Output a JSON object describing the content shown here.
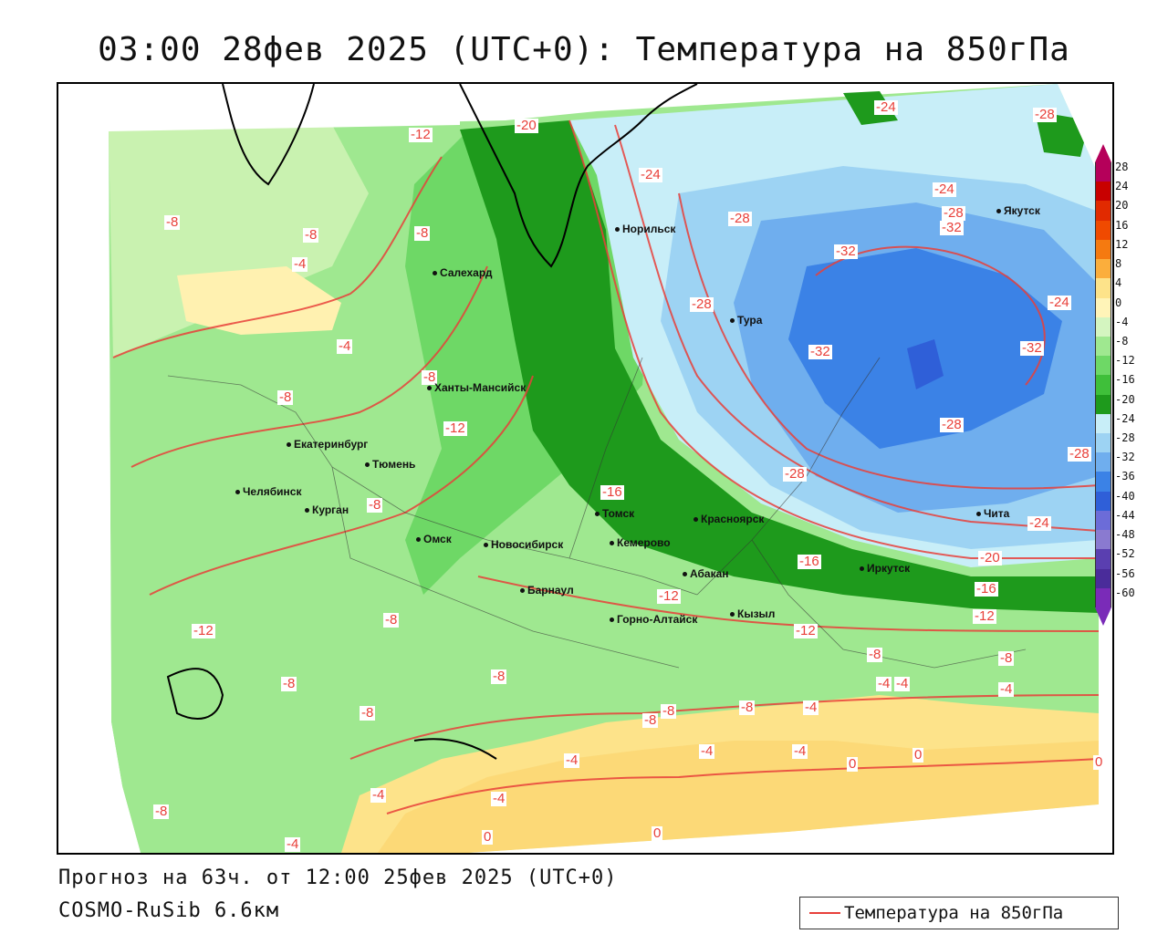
{
  "title": "03:00 28фев 2025 (UTC+0): Температура на 850гПа",
  "footer": {
    "forecast": "Прогноз на 63ч. от 12:00 25фев 2025 (UTC+0)",
    "model": "COSMO-RuSib 6.6км"
  },
  "legend": {
    "label": "Температура на 850гПа",
    "line_color": "#e8403a"
  },
  "colorbar": {
    "levels": [
      {
        "label": "28",
        "color": "#b5005a"
      },
      {
        "label": "24",
        "color": "#c80000"
      },
      {
        "label": "20",
        "color": "#e12a00"
      },
      {
        "label": "16",
        "color": "#f04a00"
      },
      {
        "label": "12",
        "color": "#f57a10"
      },
      {
        "label": "8",
        "color": "#fbae3c"
      },
      {
        "label": "4",
        "color": "#fde38a"
      },
      {
        "label": "0",
        "color": "#fff4b8"
      },
      {
        "label": "-4",
        "color": "#d4f5c0"
      },
      {
        "label": "-8",
        "color": "#9fe890"
      },
      {
        "label": "-12",
        "color": "#6ed866"
      },
      {
        "label": "-16",
        "color": "#3fbf3a"
      },
      {
        "label": "-20",
        "color": "#1e9a1c"
      },
      {
        "label": "-24",
        "color": "#c8eef8"
      },
      {
        "label": "-28",
        "color": "#9dd3f3"
      },
      {
        "label": "-32",
        "color": "#6faeee"
      },
      {
        "label": "-36",
        "color": "#3b82e6"
      },
      {
        "label": "-40",
        "color": "#2f5fd8"
      },
      {
        "label": "-44",
        "color": "#6c6cd8"
      },
      {
        "label": "-48",
        "color": "#8a7ad0"
      },
      {
        "label": "-52",
        "color": "#5a3fb0"
      },
      {
        "label": "-56",
        "color": "#4a2c9a"
      },
      {
        "label": "-60",
        "color": "#7a2bb8"
      }
    ]
  },
  "cities": [
    {
      "name": "Норильск"
    },
    {
      "name": "Якутск"
    },
    {
      "name": "Салехард"
    },
    {
      "name": "Тура"
    },
    {
      "name": "Ханты-Мансийск"
    },
    {
      "name": "Екатеринбург"
    },
    {
      "name": "Тюмень"
    },
    {
      "name": "Челябинск"
    },
    {
      "name": "Курган"
    },
    {
      "name": "Омск"
    },
    {
      "name": "Новосибирск"
    },
    {
      "name": "Томск"
    },
    {
      "name": "Кемерово"
    },
    {
      "name": "Красноярск"
    },
    {
      "name": "Абакан"
    },
    {
      "name": "Иркутск"
    },
    {
      "name": "Чита"
    },
    {
      "name": "Барнаул"
    },
    {
      "name": "Горно-Алтайск"
    },
    {
      "name": "Кызыл"
    }
  ],
  "contour_labels": [
    "-20",
    "-12",
    "-24",
    "-28",
    "-8",
    "-8",
    "-8",
    "-4",
    "-4",
    "-28",
    "-24",
    "-28",
    "-32",
    "-32",
    "-28",
    "-24",
    "-8",
    "-8",
    "-12",
    "-32",
    "-32",
    "-28",
    "-28",
    "-12",
    "-24",
    "-28",
    "-16",
    "-8",
    "-16",
    "-20",
    "-16",
    "-24",
    "-12",
    "-12",
    "-8",
    "-8",
    "-4",
    "-12",
    "-8",
    "-8",
    "-8",
    "-8",
    "-8",
    "-4",
    "-4",
    "-8",
    "-8",
    "-4",
    "-4",
    "-4",
    "0",
    "0",
    "0",
    "-8",
    "-4",
    "-4",
    "-4",
    "0",
    "0",
    "-4"
  ]
}
